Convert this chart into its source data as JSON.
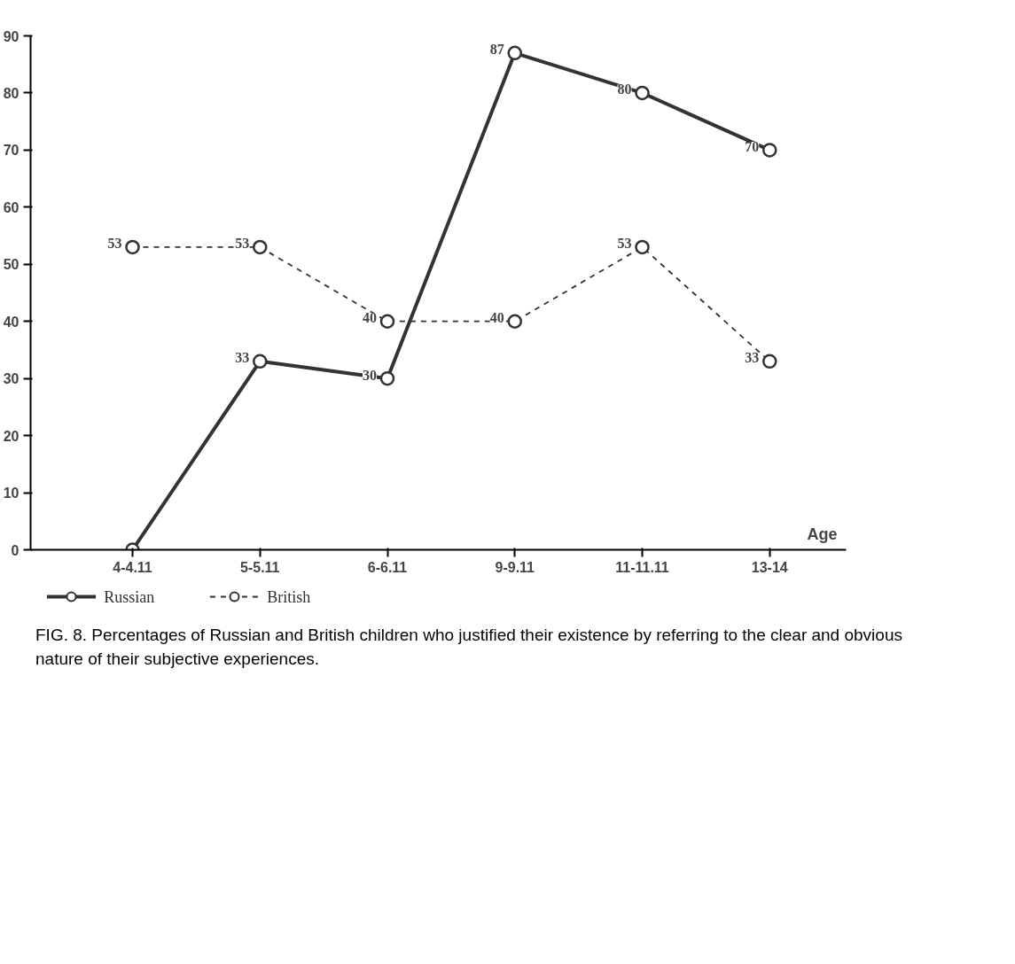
{
  "chart_data": {
    "type": "line",
    "categories": [
      "4-4.11",
      "5-5.11",
      "6-6.11",
      "9-9.11",
      "11-11.11",
      "13-14"
    ],
    "xlabel": "Age",
    "ylim": [
      0,
      90
    ],
    "yticks": [
      0,
      10,
      20,
      30,
      40,
      50,
      60,
      70,
      80,
      90
    ],
    "grid": false,
    "marker": "circle",
    "legend": "bottom left",
    "series": [
      {
        "name": "Russian",
        "color": "#333333",
        "line_style": "solid",
        "values": [
          0,
          33,
          30,
          87,
          80,
          70
        ],
        "value_labels": [
          null,
          "33",
          "30",
          "87",
          "80",
          "70"
        ]
      },
      {
        "name": "British",
        "color": "#333333",
        "line_style": "dashed",
        "values": [
          53,
          53,
          40,
          40,
          53,
          33
        ],
        "value_labels": [
          "53",
          "53",
          "40",
          "40",
          "53",
          "33"
        ]
      }
    ],
    "annotations": [
      "FIG. 8.  Percentages of Russian and British children who justified their existence by referring to the clear and obvious nature of their subjective experiences."
    ]
  }
}
